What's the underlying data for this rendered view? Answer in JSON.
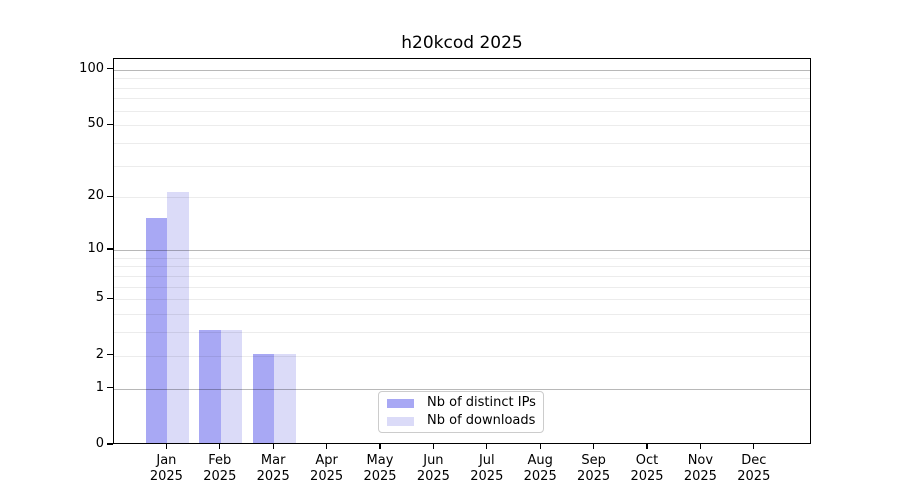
{
  "chart_data": {
    "type": "bar",
    "title": "h20kcod 2025",
    "yscale": "log1p",
    "grid": true,
    "legend_position": "bottom-center-inside",
    "categories": [
      "Jan",
      "Feb",
      "Mar",
      "Apr",
      "May",
      "Jun",
      "Jul",
      "Aug",
      "Sep",
      "Oct",
      "Nov",
      "Dec"
    ],
    "x_year_label": "2025",
    "series": [
      {
        "name": "Nb of distinct IPs",
        "color": "#a8a8f4",
        "values": [
          15,
          3,
          2,
          0,
          0,
          0,
          0,
          0,
          0,
          0,
          0,
          0
        ]
      },
      {
        "name": "Nb of downloads",
        "color": "#dbdbf8",
        "values": [
          21,
          3,
          2,
          0,
          0,
          0,
          0,
          0,
          0,
          0,
          0,
          0
        ]
      }
    ],
    "yticks": [
      100,
      50,
      20,
      10,
      5,
      2,
      1,
      0
    ],
    "major_gridlines": [
      1,
      10,
      100
    ],
    "minor_gridlines": [
      2,
      3,
      4,
      5,
      6,
      7,
      8,
      9,
      20,
      30,
      40,
      50,
      60,
      70,
      80,
      90
    ],
    "ylim": [
      0,
      114
    ],
    "axis_color": "#000000",
    "major_grid_color": "#b8b8b8",
    "minor_grid_color": "#ececec"
  }
}
